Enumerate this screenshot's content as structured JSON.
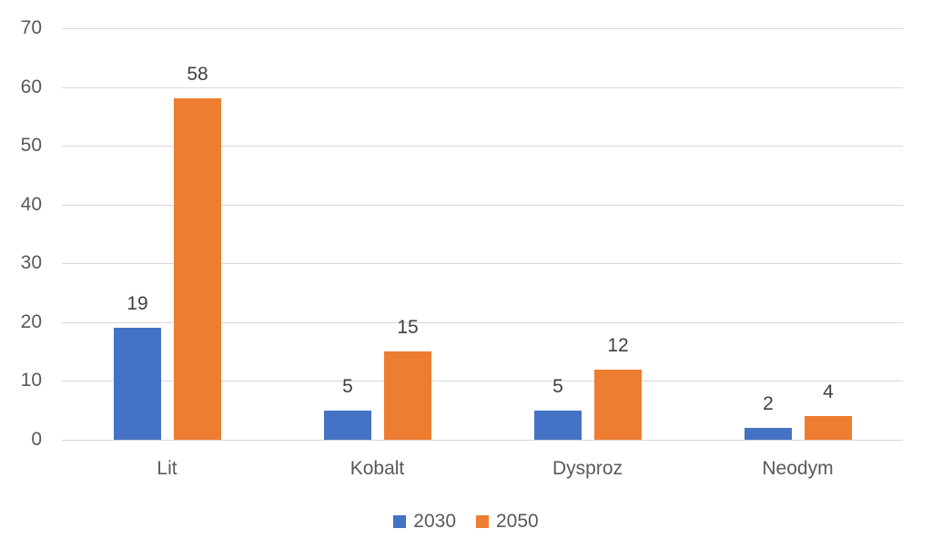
{
  "chart_data": {
    "type": "bar",
    "categories": [
      "Lit",
      "Kobalt",
      "Dysproz",
      "Neodym"
    ],
    "series": [
      {
        "name": "2030",
        "color": "#4472C4",
        "values": [
          19,
          5,
          5,
          2
        ]
      },
      {
        "name": "2050",
        "color": "#ED7D31",
        "values": [
          58,
          15,
          12,
          4
        ]
      }
    ],
    "title": "",
    "xlabel": "",
    "ylabel": "",
    "ylim": [
      0,
      70
    ],
    "yticks": [
      0,
      10,
      20,
      30,
      40,
      50,
      60,
      70
    ],
    "grid": true,
    "data_labels": true,
    "legend_position": "bottom"
  },
  "colors": {
    "background": "#FFFFFF",
    "gridline": "#D9D9D9",
    "axis_line": "#D2D2D2",
    "tick_label": "#595959",
    "category_label": "#595959",
    "data_label": "#404040",
    "legend_label": "#595959"
  }
}
